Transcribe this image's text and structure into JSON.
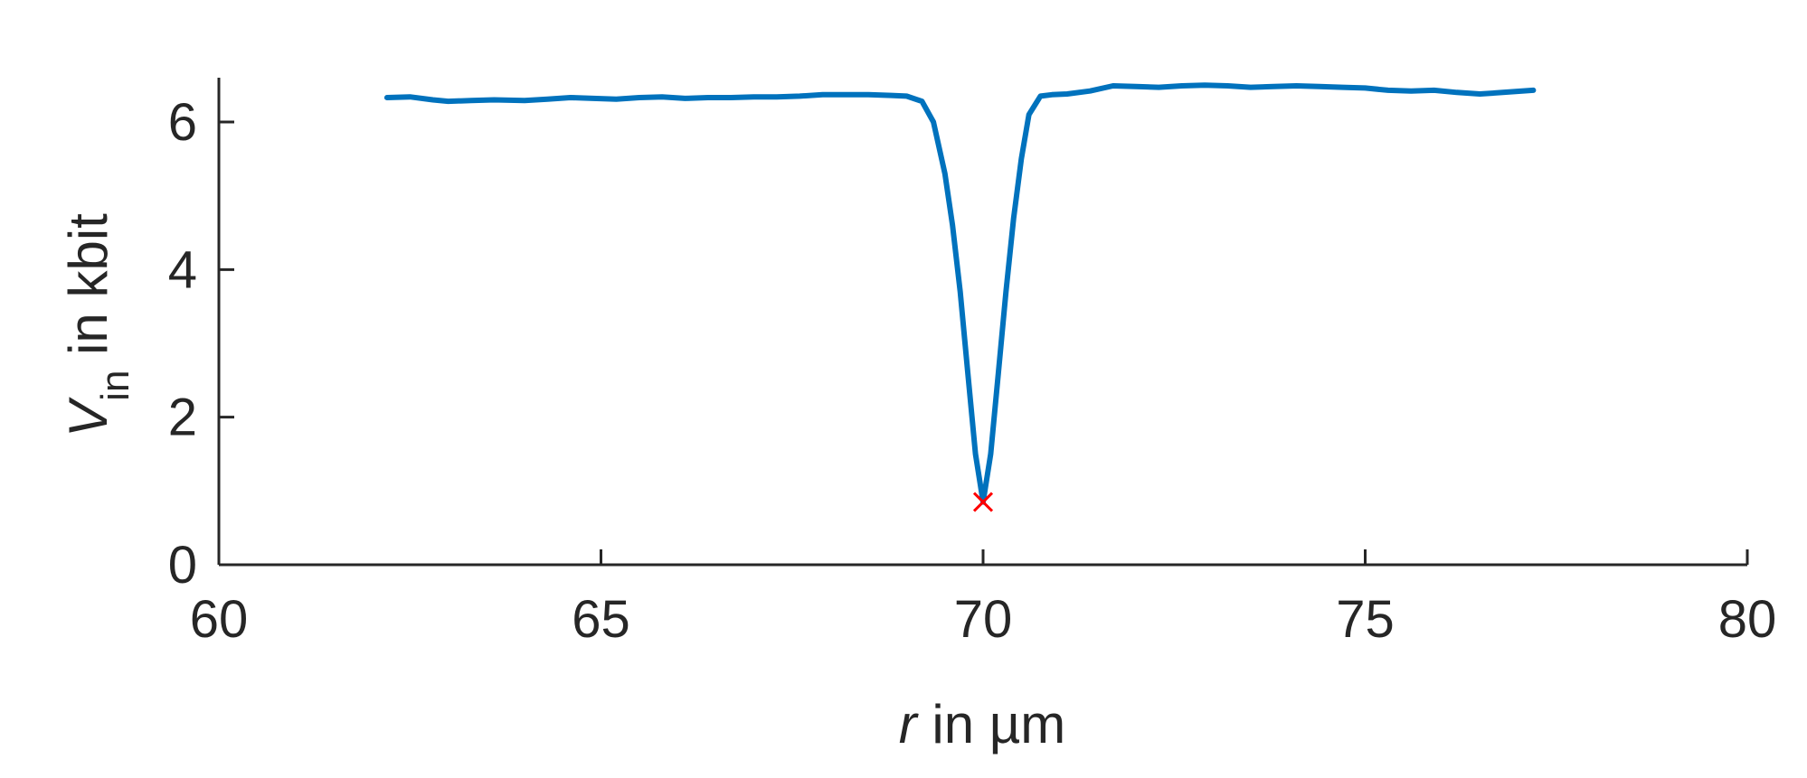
{
  "chart_data": {
    "type": "line",
    "title": "",
    "xlabel": {
      "var": "r",
      "rest": " in µm"
    },
    "ylabel": {
      "var": "V",
      "sub": "in",
      "rest": " in kbit"
    },
    "xlim": [
      60,
      80
    ],
    "ylim": [
      0,
      6.6
    ],
    "xticks": [
      60,
      65,
      70,
      75,
      80
    ],
    "yticks": [
      0,
      2,
      4,
      6
    ],
    "xtick_labels": [
      "60",
      "65",
      "70",
      "75",
      "80"
    ],
    "ytick_labels": [
      "0",
      "2",
      "4",
      "6"
    ],
    "grid": false,
    "legend": "none",
    "line_color": "#0072BD",
    "marker_color": "#FF0000",
    "series": [
      {
        "x": [
          62.2,
          62.5,
          62.8,
          63.0,
          63.3,
          63.6,
          64.0,
          64.3,
          64.6,
          64.9,
          65.2,
          65.5,
          65.8,
          66.1,
          66.4,
          66.7,
          67.0,
          67.3,
          67.6,
          67.9,
          68.2,
          68.5,
          68.8,
          69.0,
          69.2,
          69.35,
          69.5,
          69.6,
          69.7,
          69.8,
          69.9,
          70.0,
          70.1,
          70.2,
          70.3,
          70.4,
          70.5,
          70.6,
          70.75,
          70.9,
          71.1,
          71.4,
          71.7,
          72.0,
          72.3,
          72.6,
          72.9,
          73.2,
          73.5,
          73.8,
          74.1,
          74.4,
          74.7,
          75.0,
          75.3,
          75.6,
          75.9,
          76.2,
          76.5,
          76.8,
          77.2
        ],
        "y": [
          6.33,
          6.34,
          6.3,
          6.28,
          6.29,
          6.3,
          6.29,
          6.31,
          6.33,
          6.32,
          6.31,
          6.33,
          6.34,
          6.32,
          6.33,
          6.33,
          6.34,
          6.34,
          6.35,
          6.37,
          6.37,
          6.37,
          6.36,
          6.35,
          6.28,
          6.0,
          5.3,
          4.6,
          3.7,
          2.6,
          1.5,
          0.85,
          1.5,
          2.6,
          3.7,
          4.7,
          5.5,
          6.1,
          6.35,
          6.37,
          6.38,
          6.42,
          6.49,
          6.48,
          6.47,
          6.49,
          6.5,
          6.49,
          6.47,
          6.48,
          6.49,
          6.48,
          6.47,
          6.46,
          6.43,
          6.42,
          6.43,
          6.4,
          6.38,
          6.4,
          6.43
        ]
      }
    ],
    "markers": [
      {
        "x": 70.0,
        "y": 0.85,
        "symbol": "x"
      }
    ]
  }
}
